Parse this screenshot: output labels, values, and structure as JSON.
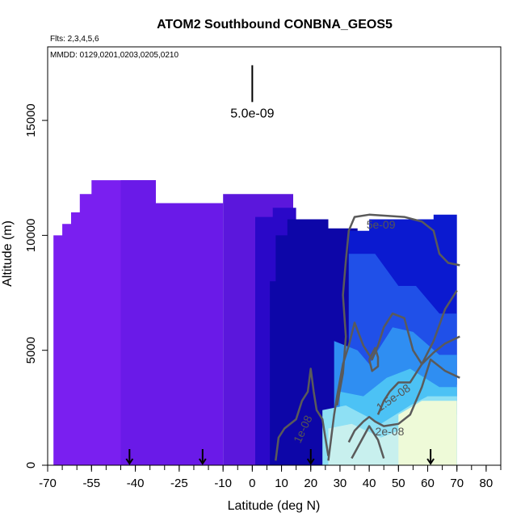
{
  "chart_data": {
    "type": "heatmap",
    "title": "ATOM2 Southbound CONBNA_GEOS5",
    "flights_note": "Flts: 2,3,4,5,6",
    "dates_note": "MMDD: 0129,0201,0203,0205,0210",
    "xlabel": "Latitude (deg N)",
    "ylabel": "Altitude (m)",
    "xlim": [
      -70,
      85
    ],
    "ylim": [
      0,
      18200
    ],
    "xticks": [
      -70,
      -55,
      -40,
      -25,
      -10,
      0,
      10,
      20,
      30,
      40,
      50,
      60,
      70,
      80
    ],
    "xtick_labels": [
      "-70",
      "-55",
      "-40",
      "-25",
      "-10",
      "0",
      "10",
      "20",
      "30",
      "40",
      "50",
      "60",
      "70",
      "80"
    ],
    "yticks": [
      0,
      5000,
      10000,
      15000
    ],
    "ytick_labels": [
      "0",
      "5000",
      "10000",
      "15000"
    ],
    "scale_bar": {
      "label": "5.0e-09",
      "x": 0,
      "y_top": 17400,
      "y_bottom": 15800
    },
    "profile_arrows": [
      -42,
      -17,
      20,
      61
    ],
    "regions": [
      {
        "color": "#7a1ff0",
        "points": [
          [
            -68,
            0
          ],
          [
            -68,
            10000
          ],
          [
            -65,
            10000
          ],
          [
            -65,
            10500
          ],
          [
            -62,
            10500
          ],
          [
            -62,
            11000
          ],
          [
            -59,
            11000
          ],
          [
            -59,
            11800
          ],
          [
            -55,
            11800
          ],
          [
            -55,
            12400
          ],
          [
            -33,
            12400
          ],
          [
            -33,
            11400
          ],
          [
            -30,
            11400
          ],
          [
            -30,
            0
          ]
        ]
      },
      {
        "color": "#6a1ae8",
        "points": [
          [
            -45,
            0
          ],
          [
            -45,
            12400
          ],
          [
            -33,
            12400
          ],
          [
            -33,
            11400
          ],
          [
            -10,
            11400
          ],
          [
            -10,
            0
          ]
        ]
      },
      {
        "color": "#5b17dc",
        "points": [
          [
            -10,
            0
          ],
          [
            -10,
            11800
          ],
          [
            14,
            11800
          ],
          [
            14,
            0
          ]
        ]
      },
      {
        "color": "#2a08c8",
        "points": [
          [
            1,
            0
          ],
          [
            1,
            10800
          ],
          [
            7,
            10800
          ],
          [
            7,
            11200
          ],
          [
            15,
            11200
          ],
          [
            15,
            0
          ]
        ]
      },
      {
        "color": "#0d06a8",
        "points": [
          [
            6,
            0
          ],
          [
            6,
            8000
          ],
          [
            8,
            8000
          ],
          [
            8,
            10000
          ],
          [
            12,
            10000
          ],
          [
            12,
            10700
          ],
          [
            26,
            10700
          ],
          [
            26,
            10300
          ],
          [
            36,
            10300
          ],
          [
            36,
            0
          ]
        ]
      },
      {
        "color": "#0b1ad0",
        "points": [
          [
            33,
            3500
          ],
          [
            33,
            10200
          ],
          [
            40,
            10200
          ],
          [
            40,
            10700
          ],
          [
            62,
            10700
          ],
          [
            62,
            10900
          ],
          [
            70,
            10900
          ],
          [
            70,
            3500
          ]
        ]
      },
      {
        "color": "#2050e8",
        "points": [
          [
            33,
            4200
          ],
          [
            33,
            9200
          ],
          [
            42,
            9200
          ],
          [
            50,
            7800
          ],
          [
            56,
            7800
          ],
          [
            64,
            6600
          ],
          [
            70,
            6600
          ],
          [
            70,
            3000
          ],
          [
            40,
            3000
          ]
        ]
      },
      {
        "color": "#2f8ef2",
        "points": [
          [
            28,
            0
          ],
          [
            28,
            5400
          ],
          [
            36,
            5000
          ],
          [
            40,
            4400
          ],
          [
            48,
            6000
          ],
          [
            55,
            5800
          ],
          [
            64,
            4800
          ],
          [
            70,
            4800
          ],
          [
            70,
            0
          ]
        ]
      },
      {
        "color": "#4cc2f5",
        "points": [
          [
            30,
            0
          ],
          [
            30,
            3200
          ],
          [
            38,
            3000
          ],
          [
            46,
            3800
          ],
          [
            54,
            4200
          ],
          [
            64,
            3400
          ],
          [
            70,
            3400
          ],
          [
            70,
            0
          ]
        ]
      },
      {
        "color": "#8ee0f4",
        "points": [
          [
            24,
            0
          ],
          [
            24,
            2400
          ],
          [
            32,
            2600
          ],
          [
            38,
            2200
          ],
          [
            44,
            1800
          ],
          [
            54,
            2600
          ],
          [
            60,
            3000
          ],
          [
            70,
            3000
          ],
          [
            70,
            0
          ]
        ]
      },
      {
        "color": "#c8f0ee",
        "points": [
          [
            26,
            0
          ],
          [
            26,
            1600
          ],
          [
            34,
            1800
          ],
          [
            44,
            1200
          ],
          [
            52,
            1600
          ],
          [
            58,
            2200
          ],
          [
            70,
            2200
          ],
          [
            70,
            0
          ]
        ]
      },
      {
        "color": "#eefad8",
        "points": [
          [
            50,
            0
          ],
          [
            50,
            2200
          ],
          [
            58,
            2800
          ],
          [
            70,
            2800
          ],
          [
            70,
            0
          ]
        ]
      }
    ],
    "contours": [
      {
        "level": "5e-09",
        "points": [
          [
            29,
            2600
          ],
          [
            31,
            4000
          ],
          [
            32,
            5600
          ],
          [
            31,
            7400
          ],
          [
            32,
            8900
          ],
          [
            33,
            10200
          ],
          [
            35,
            10800
          ],
          [
            40,
            10900
          ],
          [
            52,
            10800
          ],
          [
            58,
            10600
          ],
          [
            62,
            10200
          ],
          [
            64,
            9200
          ],
          [
            67,
            8800
          ],
          [
            71,
            8700
          ]
        ]
      },
      {
        "level": "1e-08",
        "points": [
          [
            8,
            200
          ],
          [
            9,
            1200
          ],
          [
            11,
            1600
          ],
          [
            15,
            2000
          ],
          [
            17,
            2800
          ],
          [
            19,
            3200
          ],
          [
            20,
            4200
          ],
          [
            21,
            3200
          ],
          [
            22,
            2400
          ],
          [
            24,
            2000
          ],
          [
            25,
            1200
          ],
          [
            26,
            400
          ]
        ]
      },
      {
        "level": "1.5e-08",
        "points": [
          [
            26,
            200
          ],
          [
            27,
            1200
          ],
          [
            28,
            2200
          ],
          [
            29,
            3000
          ],
          [
            31,
            4400
          ],
          [
            33,
            5200
          ],
          [
            35,
            6200
          ],
          [
            38,
            5200
          ],
          [
            41,
            4600
          ],
          [
            43,
            5200
          ],
          [
            45,
            6000
          ],
          [
            48,
            6600
          ],
          [
            52,
            6400
          ],
          [
            55,
            5000
          ],
          [
            58,
            4400
          ],
          [
            62,
            5400
          ],
          [
            66,
            6800
          ],
          [
            70,
            7600
          ]
        ]
      },
      {
        "level": "1.5e-08",
        "points": [
          [
            40,
            4600
          ],
          [
            41,
            4100
          ],
          [
            43,
            4300
          ],
          [
            43,
            4700
          ],
          [
            42,
            5100
          ],
          [
            40,
            4600
          ]
        ]
      },
      {
        "level": "1.5e-08",
        "points": [
          [
            43,
            2200
          ],
          [
            45,
            2800
          ],
          [
            47,
            3200
          ],
          [
            50,
            3600
          ],
          [
            54,
            3600
          ],
          [
            58,
            4400
          ],
          [
            62,
            4900
          ],
          [
            66,
            5300
          ],
          [
            71,
            5600
          ]
        ]
      },
      {
        "level": "2e-08",
        "points": [
          [
            33,
            1000
          ],
          [
            35,
            1500
          ],
          [
            38,
            1900
          ],
          [
            40,
            2100
          ],
          [
            42,
            1900
          ],
          [
            45,
            1700
          ],
          [
            50,
            1800
          ],
          [
            54,
            2200
          ],
          [
            58,
            3400
          ],
          [
            61,
            4600
          ],
          [
            66,
            4100
          ],
          [
            71,
            3800
          ]
        ]
      },
      {
        "level": "2e-08",
        "points": [
          [
            34,
            300
          ],
          [
            37,
            1000
          ],
          [
            40,
            1700
          ],
          [
            43,
            1100
          ],
          [
            45,
            300
          ]
        ]
      }
    ],
    "contour_labels": [
      {
        "text": "5e-09",
        "x": 44,
        "y": 10300,
        "angle": 0
      },
      {
        "text": "1e-08",
        "x": 18.5,
        "y": 1500,
        "angle": -65
      },
      {
        "text": "1.5e-08",
        "x": 49,
        "y": 2800,
        "angle": -35
      },
      {
        "text": "2e-08",
        "x": 47,
        "y": 1300,
        "angle": 0
      }
    ]
  }
}
